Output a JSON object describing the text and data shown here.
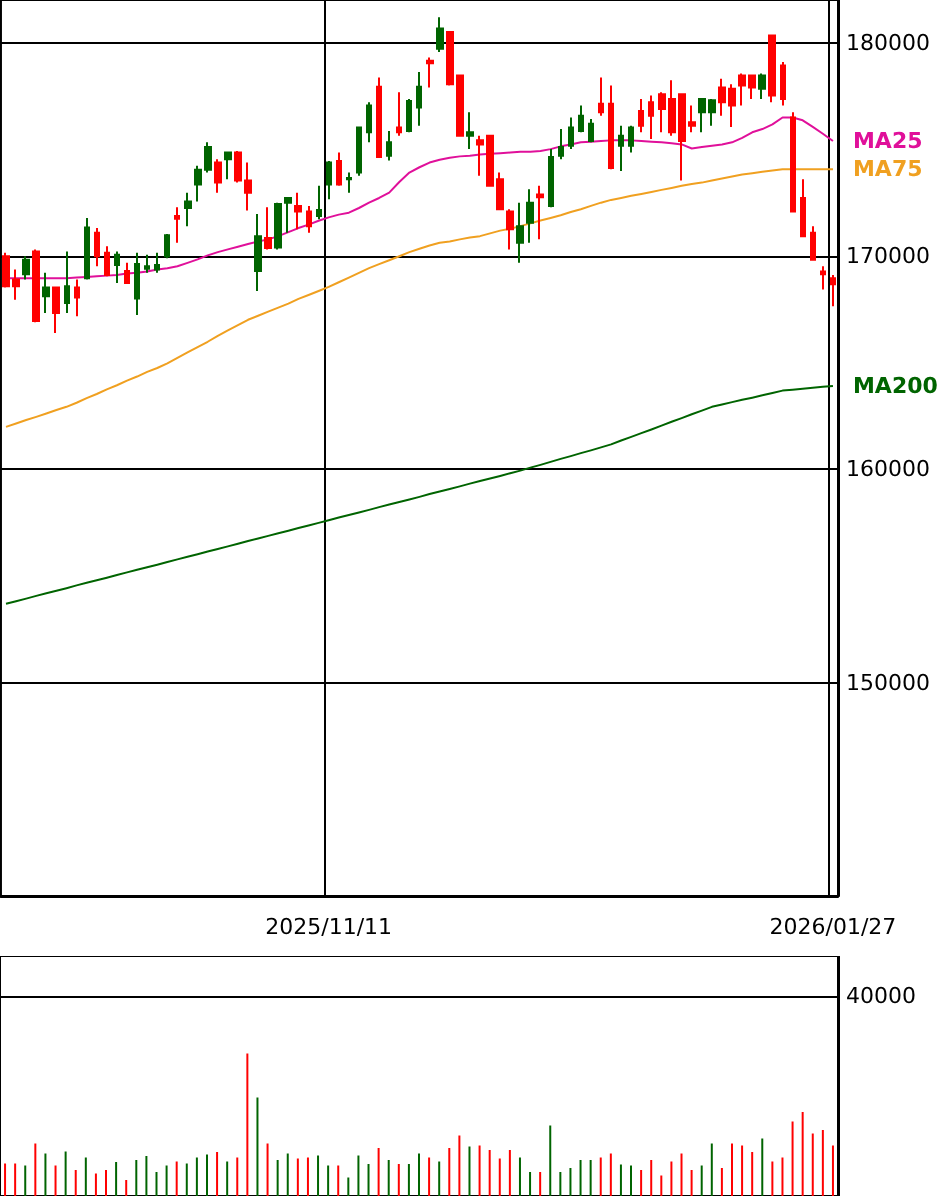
{
  "chart_data": [
    {
      "type": "candlestick",
      "categories": [
        null,
        null,
        null,
        null,
        null,
        null,
        null,
        null,
        null,
        null,
        null,
        null,
        null,
        null,
        null,
        null,
        null,
        null,
        null,
        null,
        null,
        null,
        null,
        null,
        null,
        null,
        null,
        null,
        null,
        null,
        null,
        null,
        "2025/11/11",
        null,
        null,
        null,
        null,
        null,
        null,
        null,
        null,
        null,
        null,
        null,
        null,
        null,
        null,
        null,
        null,
        null,
        null,
        null,
        null,
        null,
        null,
        null,
        null,
        null,
        null,
        null,
        null,
        null,
        null,
        null,
        null,
        null,
        null,
        null,
        null,
        null,
        null,
        null,
        null,
        null,
        null,
        null,
        null,
        null,
        null,
        null,
        null,
        null,
        "2026/01/27"
      ],
      "ohlc": [
        [
          169990,
          170150,
          168520,
          168580
        ],
        [
          168900,
          169370,
          167950,
          168580
        ],
        [
          169150,
          169990,
          168900,
          169830
        ],
        [
          170210,
          170300,
          166890,
          166950
        ],
        [
          168110,
          169210,
          167330,
          168520
        ],
        [
          168520,
          168520,
          166390,
          167330
        ],
        [
          167800,
          170210,
          167330,
          168580
        ],
        [
          168520,
          168900,
          167170,
          168050
        ],
        [
          168960,
          171780,
          168900,
          171340
        ],
        [
          171090,
          171310,
          169520,
          169990
        ],
        [
          170150,
          170460,
          169050,
          169110
        ],
        [
          169580,
          170210,
          168740,
          170060
        ],
        [
          169300,
          169680,
          168740,
          168740
        ],
        [
          168010,
          170150,
          167230,
          169620
        ],
        [
          169400,
          170060,
          169210,
          169520
        ],
        [
          169370,
          170150,
          169210,
          169580
        ],
        [
          169990,
          171030,
          169900,
          170970
        ],
        [
          171870,
          172280,
          170620,
          171750
        ],
        [
          172250,
          172970,
          171400,
          172560
        ],
        [
          173350,
          174230,
          172560,
          174040
        ],
        [
          174040,
          175330,
          173910,
          175110
        ],
        [
          174380,
          174540,
          172970,
          173440
        ],
        [
          174540,
          174850,
          173600,
          174850
        ],
        [
          174850,
          174920,
          173440,
          173540
        ],
        [
          173540,
          174380,
          172130,
          172970
        ],
        [
          169300,
          171970,
          168360,
          170930
        ],
        [
          170840,
          172280,
          170310,
          170370
        ],
        [
          170400,
          172500,
          170310,
          172440
        ],
        [
          172500,
          172720,
          171090,
          172720
        ],
        [
          172340,
          172970,
          171250,
          172090
        ],
        [
          172090,
          172340,
          171090,
          171400
        ],
        [
          171870,
          173290,
          171720,
          172160
        ],
        [
          173350,
          174450,
          172660,
          174380
        ],
        [
          174450,
          174850,
          173290,
          173350
        ],
        [
          173600,
          173910,
          172970,
          173660
        ],
        [
          173910,
          176050,
          173760,
          176020
        ],
        [
          175800,
          177210,
          175330,
          177050
        ],
        [
          177930,
          178370,
          174640,
          174640
        ],
        [
          174700,
          175860,
          174480,
          175330
        ],
        [
          176020,
          177680,
          175640,
          175800
        ],
        [
          175860,
          177360,
          175800,
          177270
        ],
        [
          176960,
          178620,
          176110,
          177930
        ],
        [
          179150,
          179310,
          177900,
          179030
        ],
        [
          179720,
          181190,
          179560,
          180660
        ],
        [
          180500,
          180500,
          177990,
          178050
        ],
        [
          178460,
          178460,
          175640,
          175640
        ],
        [
          175640,
          176740,
          175010,
          175800
        ],
        [
          175420,
          175640,
          173760,
          175230
        ],
        [
          175640,
          175640,
          173290,
          173290
        ],
        [
          173600,
          173910,
          172190,
          172190
        ],
        [
          172090,
          172190,
          170310,
          171250
        ],
        [
          170620,
          172500,
          169680,
          171400
        ],
        [
          171560,
          173130,
          170620,
          172500
        ],
        [
          172880,
          173290,
          170780,
          172750
        ],
        [
          172340,
          175010,
          172280,
          174640
        ],
        [
          174700,
          175950,
          174540,
          175110
        ],
        [
          175170,
          176490,
          175010,
          176020
        ],
        [
          175860,
          177050,
          175800,
          176580
        ],
        [
          175390,
          176420,
          175330,
          176200
        ],
        [
          177140,
          178370,
          176580,
          176740
        ],
        [
          177140,
          177990,
          174070,
          174130
        ],
        [
          175170,
          176110,
          173980,
          175640
        ],
        [
          175170,
          176110,
          174850,
          176020
        ],
        [
          176800,
          177360,
          175800,
          176110
        ],
        [
          177210,
          177520,
          175480,
          176580
        ],
        [
          177580,
          177680,
          175800,
          176890
        ],
        [
          177360,
          178240,
          175640,
          175800
        ],
        [
          177580,
          177580,
          173540,
          175390
        ],
        [
          176270,
          177050,
          175800,
          176110
        ],
        [
          176740,
          177360,
          175800,
          177360
        ],
        [
          176740,
          177360,
          176110,
          177300
        ],
        [
          177900,
          178310,
          176580,
          177210
        ],
        [
          177840,
          178050,
          176050,
          177050
        ],
        [
          178460,
          178560,
          177050,
          177990
        ],
        [
          178460,
          178460,
          177360,
          177900
        ],
        [
          177840,
          178560,
          177360,
          178460
        ],
        [
          180340,
          180340,
          177210,
          177520
        ],
        [
          178930,
          179090,
          177050,
          177360
        ],
        [
          176490,
          176740,
          172090,
          172090
        ],
        [
          172720,
          173600,
          170930,
          170930
        ],
        [
          171090,
          171400,
          169830,
          169830
        ],
        [
          169270,
          169520,
          168430,
          169150
        ],
        [
          168960,
          169110,
          167640,
          168680
        ]
      ],
      "colors": [
        "#ff0000",
        "#ff0000",
        "#006400",
        "#ff0000",
        "#006400",
        "#ff0000",
        "#006400",
        "#ff0000",
        "#006400",
        "#ff0000",
        "#ff0000",
        "#006400",
        "#ff0000",
        "#006400",
        "#006400",
        "#006400",
        "#006400",
        "#ff0000",
        "#006400",
        "#006400",
        "#006400",
        "#ff0000",
        "#006400",
        "#ff0000",
        "#ff0000",
        "#006400",
        "#ff0000",
        "#006400",
        "#006400",
        "#ff0000",
        "#ff0000",
        "#006400",
        "#006400",
        "#ff0000",
        "#006400",
        "#006400",
        "#006400",
        "#ff0000",
        "#006400",
        "#ff0000",
        "#006400",
        "#006400",
        "#ff0000",
        "#006400",
        "#ff0000",
        "#ff0000",
        "#006400",
        "#ff0000",
        "#ff0000",
        "#ff0000",
        "#ff0000",
        "#006400",
        "#006400",
        "#ff0000",
        "#006400",
        "#006400",
        "#006400",
        "#006400",
        "#006400",
        "#ff0000",
        "#ff0000",
        "#006400",
        "#006400",
        "#ff0000",
        "#ff0000",
        "#ff0000",
        "#ff0000",
        "#ff0000",
        "#ff0000",
        "#006400",
        "#006400",
        "#ff0000",
        "#ff0000",
        "#ff0000",
        "#ff0000",
        "#006400",
        "#ff0000",
        "#ff0000",
        "#ff0000",
        "#ff0000",
        "#ff0000",
        "#ff0000",
        "#ff0000"
      ],
      "series": [
        {
          "name": "MA25",
          "type": "line",
          "color": "#e0109a",
          "values": [
            168960,
            168960,
            168960,
            168960,
            168960,
            168960,
            168960,
            168990,
            169020,
            169050,
            169080,
            169110,
            169180,
            169210,
            169270,
            169370,
            169430,
            169520,
            169680,
            169840,
            170030,
            170180,
            170310,
            170430,
            170560,
            170680,
            170780,
            170930,
            171120,
            171310,
            171470,
            171650,
            171810,
            171940,
            172030,
            172250,
            172500,
            172720,
            172970,
            173470,
            173910,
            174160,
            174380,
            174510,
            174610,
            174670,
            174700,
            174760,
            174790,
            174820,
            174850,
            174890,
            174890,
            174920,
            175010,
            175140,
            175230,
            175330,
            175360,
            175390,
            175420,
            175420,
            175420,
            175390,
            175360,
            175330,
            175290,
            175230,
            175040,
            175110,
            175170,
            175230,
            175330,
            175540,
            175800,
            175950,
            176170,
            176490,
            176490,
            176360,
            176050,
            175730,
            175390
          ]
        },
        {
          "name": "MA75",
          "type": "line",
          "color": "#f0a020",
          "values": [
            161990,
            162150,
            162310,
            162460,
            162620,
            162780,
            162930,
            163120,
            163340,
            163530,
            163750,
            163940,
            164160,
            164350,
            164570,
            164750,
            164970,
            165220,
            165480,
            165730,
            165980,
            166260,
            166510,
            166760,
            167010,
            167200,
            167390,
            167580,
            167770,
            167990,
            168170,
            168360,
            168550,
            168770,
            168990,
            169210,
            169430,
            169620,
            169800,
            169990,
            170180,
            170340,
            170490,
            170620,
            170680,
            170780,
            170870,
            170930,
            171060,
            171190,
            171280,
            171400,
            171530,
            171660,
            171780,
            171910,
            172060,
            172190,
            172350,
            172500,
            172630,
            172720,
            172820,
            172910,
            173000,
            173100,
            173190,
            173290,
            173380,
            173440,
            173540,
            173630,
            173730,
            173820,
            173880,
            173950,
            174010,
            174070,
            174070,
            174070,
            174070,
            174070,
            174070
          ]
        },
        {
          "name": "MA200",
          "type": "line",
          "color": "#006400",
          "values": [
            153700,
            153820,
            153940,
            154070,
            154190,
            154310,
            154430,
            154560,
            154680,
            154800,
            154920,
            155050,
            155170,
            155290,
            155410,
            155530,
            155660,
            155780,
            155900,
            156020,
            156150,
            156270,
            156390,
            156510,
            156640,
            156760,
            156880,
            157000,
            157120,
            157250,
            157370,
            157490,
            157610,
            157740,
            157860,
            157980,
            158100,
            158230,
            158350,
            158470,
            158590,
            158710,
            158840,
            158960,
            159080,
            159200,
            159330,
            159450,
            159570,
            159690,
            159820,
            159940,
            160080,
            160210,
            160350,
            160490,
            160620,
            160760,
            160890,
            161030,
            161170,
            161350,
            161520,
            161700,
            161870,
            162050,
            162230,
            162400,
            162580,
            162750,
            162930,
            163040,
            163150,
            163260,
            163360,
            163470,
            163580,
            163690,
            163730,
            163780,
            163820,
            163870,
            163910
          ]
        }
      ],
      "ylim": [
        140000,
        182000
      ],
      "yticks": [
        150000,
        160000,
        170000,
        180000
      ],
      "grid": true,
      "marker": "none"
    },
    {
      "type": "bar",
      "categories": [
        null,
        null,
        null,
        null,
        null,
        null,
        null,
        null,
        null,
        null,
        null,
        null,
        null,
        null,
        null,
        null,
        null,
        null,
        null,
        null,
        null,
        null,
        null,
        null,
        null,
        null,
        null,
        null,
        null,
        null,
        null,
        null,
        "2025/11/11",
        null,
        null,
        null,
        null,
        null,
        null,
        null,
        null,
        null,
        null,
        null,
        null,
        null,
        null,
        null,
        null,
        null,
        null,
        null,
        null,
        null,
        null,
        null,
        null,
        null,
        null,
        null,
        null,
        null,
        null,
        null,
        null,
        null,
        null,
        null,
        null,
        null,
        null,
        null,
        null,
        null,
        null,
        null,
        null,
        null,
        null,
        null,
        null,
        null,
        "2026/01/27"
      ],
      "values": [
        6500,
        6500,
        6100,
        10500,
        8500,
        6100,
        8900,
        5200,
        7700,
        4500,
        5200,
        6800,
        3200,
        7200,
        8000,
        4800,
        6100,
        6900,
        6500,
        7700,
        8300,
        8800,
        6900,
        7700,
        28500,
        19700,
        10500,
        7200,
        8500,
        7500,
        7700,
        8100,
        6100,
        6100,
        3700,
        8100,
        6400,
        9600,
        7200,
        6400,
        6400,
        8500,
        7700,
        6900,
        9600,
        12100,
        9900,
        10100,
        9200,
        7500,
        9200,
        7700,
        4800,
        4800,
        14100,
        4800,
        5600,
        7200,
        7200,
        7700,
        8500,
        6300,
        6100,
        5200,
        7200,
        4100,
        6900,
        8500,
        5200,
        6100,
        10500,
        5600,
        10500,
        10100,
        8800,
        11500,
        6900,
        7700,
        14900,
        16800,
        12500,
        13200,
        10100
      ],
      "colors": [
        "#ff0000",
        "#ff0000",
        "#006400",
        "#ff0000",
        "#006400",
        "#ff0000",
        "#006400",
        "#ff0000",
        "#006400",
        "#ff0000",
        "#ff0000",
        "#006400",
        "#ff0000",
        "#006400",
        "#006400",
        "#006400",
        "#006400",
        "#ff0000",
        "#006400",
        "#006400",
        "#006400",
        "#ff0000",
        "#006400",
        "#ff0000",
        "#ff0000",
        "#006400",
        "#ff0000",
        "#006400",
        "#006400",
        "#ff0000",
        "#ff0000",
        "#006400",
        "#006400",
        "#ff0000",
        "#006400",
        "#006400",
        "#006400",
        "#ff0000",
        "#006400",
        "#ff0000",
        "#006400",
        "#006400",
        "#ff0000",
        "#006400",
        "#ff0000",
        "#ff0000",
        "#006400",
        "#ff0000",
        "#ff0000",
        "#ff0000",
        "#ff0000",
        "#006400",
        "#006400",
        "#ff0000",
        "#006400",
        "#006400",
        "#006400",
        "#006400",
        "#006400",
        "#ff0000",
        "#ff0000",
        "#006400",
        "#006400",
        "#ff0000",
        "#ff0000",
        "#ff0000",
        "#ff0000",
        "#ff0000",
        "#ff0000",
        "#006400",
        "#006400",
        "#ff0000",
        "#ff0000",
        "#ff0000",
        "#ff0000",
        "#006400",
        "#ff0000",
        "#ff0000",
        "#ff0000",
        "#ff0000",
        "#ff0000",
        "#ff0000",
        "#ff0000"
      ],
      "ylim": [
        0,
        48000
      ],
      "yticks": [
        40000
      ],
      "grid": "y",
      "tick_labels": "y"
    }
  ]
}
